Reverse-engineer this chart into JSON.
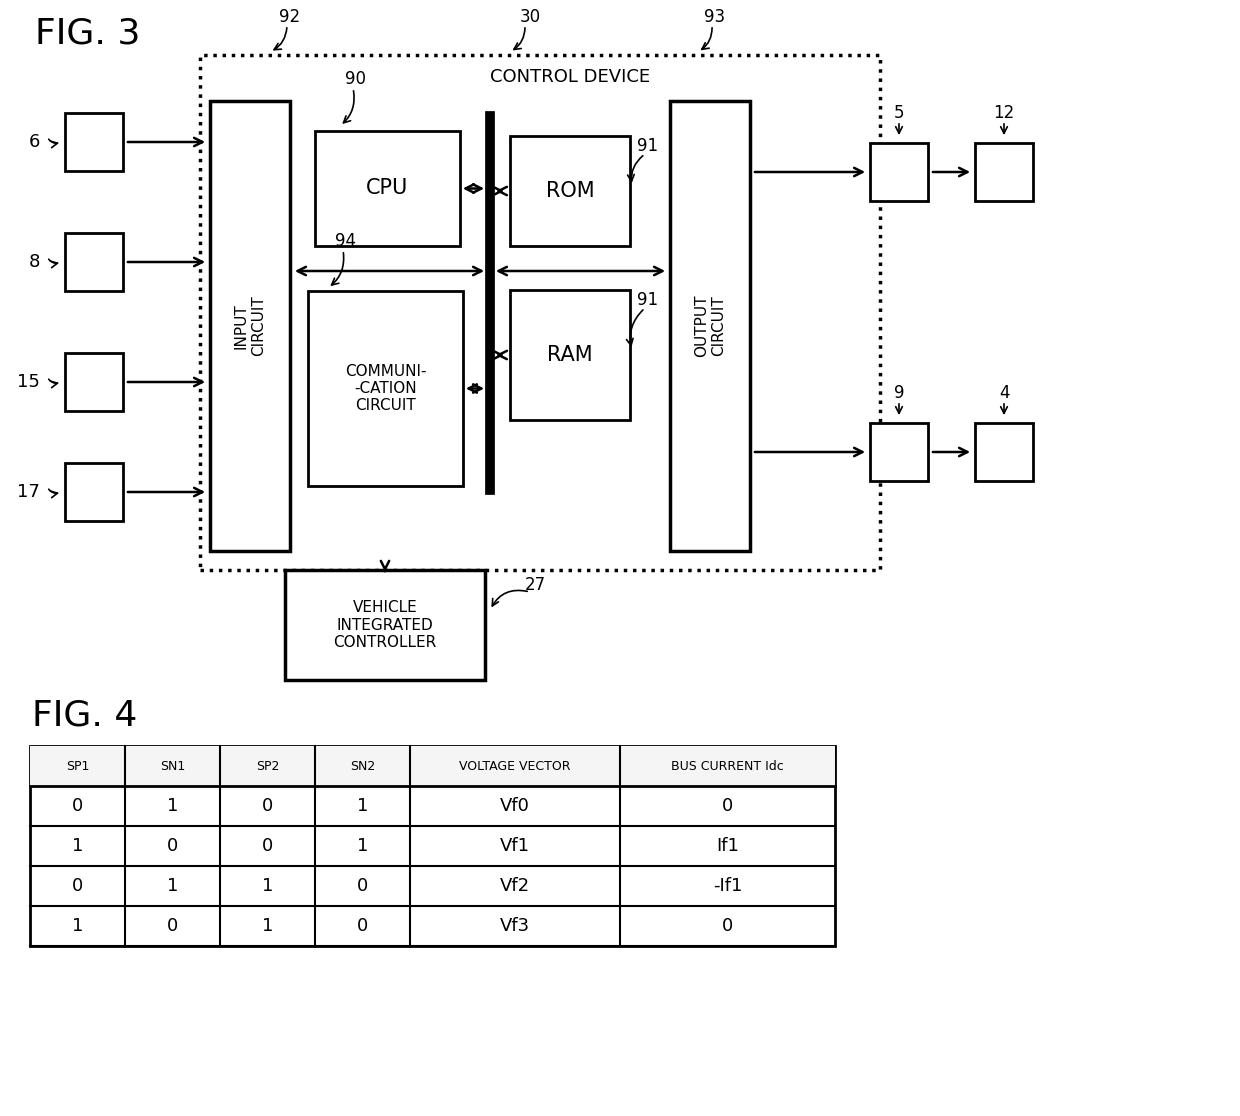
{
  "fig3_title": "FIG. 3",
  "fig4_title": "FIG. 4",
  "control_device_label": "CONTROL DEVICE",
  "input_circuit_label": "INPUT\nCIRCUIT",
  "output_circuit_label": "OUTPUT\nCIRCUIT",
  "cpu_label": "CPU",
  "rom_label": "ROM",
  "ram_label": "RAM",
  "communi_label": "COMMUNI-\n-CATION\nCIRCUIT",
  "vehicle_label": "VEHICLE\nINTEGRATED\nCONTROLLER",
  "table_headers": [
    "SP1",
    "SN1",
    "SP2",
    "SN2",
    "VOLTAGE VECTOR",
    "BUS CURRENT Idc"
  ],
  "table_data": [
    [
      "0",
      "1",
      "0",
      "1",
      "Vf0",
      "0"
    ],
    [
      "1",
      "0",
      "0",
      "1",
      "Vf1",
      "If1"
    ],
    [
      "0",
      "1",
      "1",
      "0",
      "Vf2",
      "-If1"
    ],
    [
      "1",
      "0",
      "1",
      "0",
      "Vf3",
      "0"
    ]
  ],
  "bg_color": "#ffffff",
  "text_color": "#000000"
}
